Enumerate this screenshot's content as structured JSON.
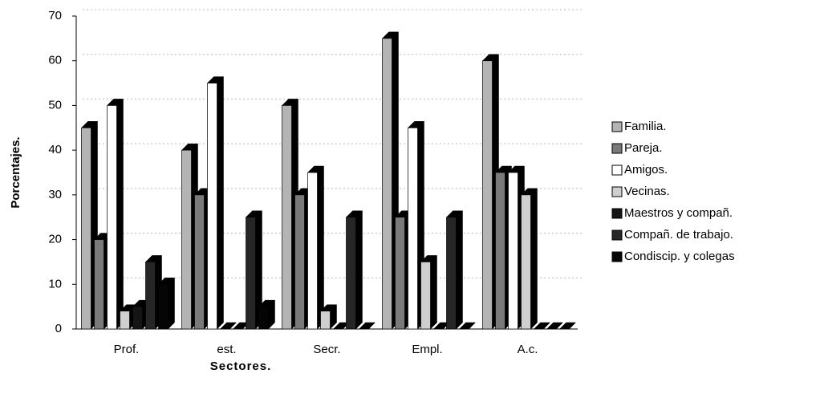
{
  "chart_data": {
    "type": "bar3d",
    "y_label": "Porcentajes.",
    "x_label": "Sectores.",
    "categories": [
      "Prof.",
      "est.",
      "Secr.",
      "Empl.",
      "A.c."
    ],
    "series": [
      {
        "name": "Familia.",
        "color": "#b4b4b4",
        "values": [
          45,
          40,
          50,
          65,
          60
        ]
      },
      {
        "name": "Pareja.",
        "color": "#7a7a7a",
        "values": [
          20,
          30,
          30,
          25,
          35
        ]
      },
      {
        "name": "Amigos.",
        "color": "#ffffff",
        "values": [
          50,
          55,
          35,
          45,
          35
        ]
      },
      {
        "name": "Vecinas.",
        "color": "#cfcfcf",
        "values": [
          4,
          0,
          4,
          15,
          30
        ]
      },
      {
        "name": "Maestros y compañ.",
        "color": "#151515",
        "values": [
          5,
          0,
          0,
          0,
          0
        ]
      },
      {
        "name": "Compañ. de trabajo.",
        "color": "#262626",
        "values": [
          15,
          25,
          25,
          25,
          0
        ]
      },
      {
        "name": "Condiscip. y colegas",
        "color": "#050505",
        "values": [
          10,
          5,
          0,
          0,
          0
        ]
      }
    ],
    "ylim": [
      0,
      70
    ],
    "yticks": [
      0,
      10,
      20,
      30,
      40,
      50,
      60,
      70
    ],
    "grid": true,
    "legend": "right"
  }
}
